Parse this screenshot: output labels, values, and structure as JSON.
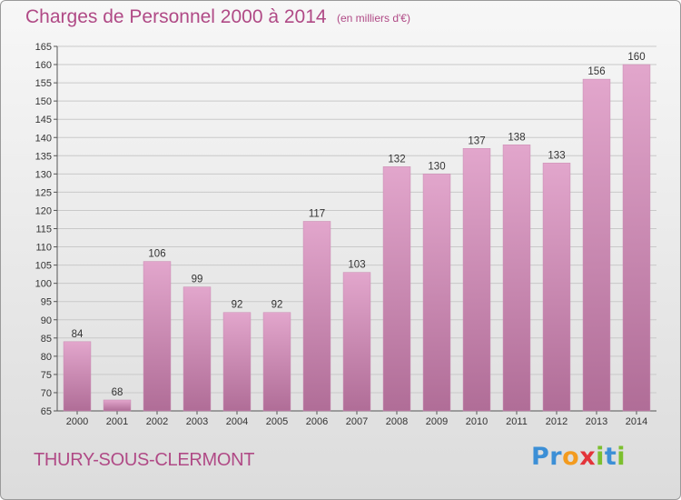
{
  "title": "Charges de Personnel 2000 à 2014",
  "subtitle": "(en milliers d'€)",
  "city": "THURY-SOUS-CLERMONT",
  "logo": {
    "letters": [
      "P",
      "r",
      "o",
      "x",
      "i",
      "t",
      "i"
    ],
    "colors": [
      "#3c8fd6",
      "#3c8fd6",
      "#f39b1f",
      "#e3343a",
      "#7cbf2e",
      "#3c8fd6",
      "#7cbf2e"
    ]
  },
  "colors": {
    "title": "#b04a86",
    "bar_top": "#e2a6cc",
    "bar_bottom": "#b06d97"
  },
  "chart_data": {
    "type": "bar",
    "title": "Charges de Personnel 2000 à 2014",
    "subtitle": "(en milliers d'€)",
    "categories": [
      "2000",
      "2001",
      "2002",
      "2003",
      "2004",
      "2005",
      "2006",
      "2007",
      "2008",
      "2009",
      "2010",
      "2011",
      "2012",
      "2013",
      "2014"
    ],
    "values": [
      84,
      68,
      106,
      99,
      92,
      92,
      117,
      103,
      132,
      130,
      137,
      138,
      133,
      156,
      160
    ],
    "ylim": [
      65,
      165
    ],
    "yticks": [
      65,
      70,
      75,
      80,
      85,
      90,
      95,
      100,
      105,
      110,
      115,
      120,
      125,
      130,
      135,
      140,
      145,
      150,
      155,
      160,
      165
    ],
    "grid": true,
    "xlabel": "",
    "ylabel": ""
  }
}
